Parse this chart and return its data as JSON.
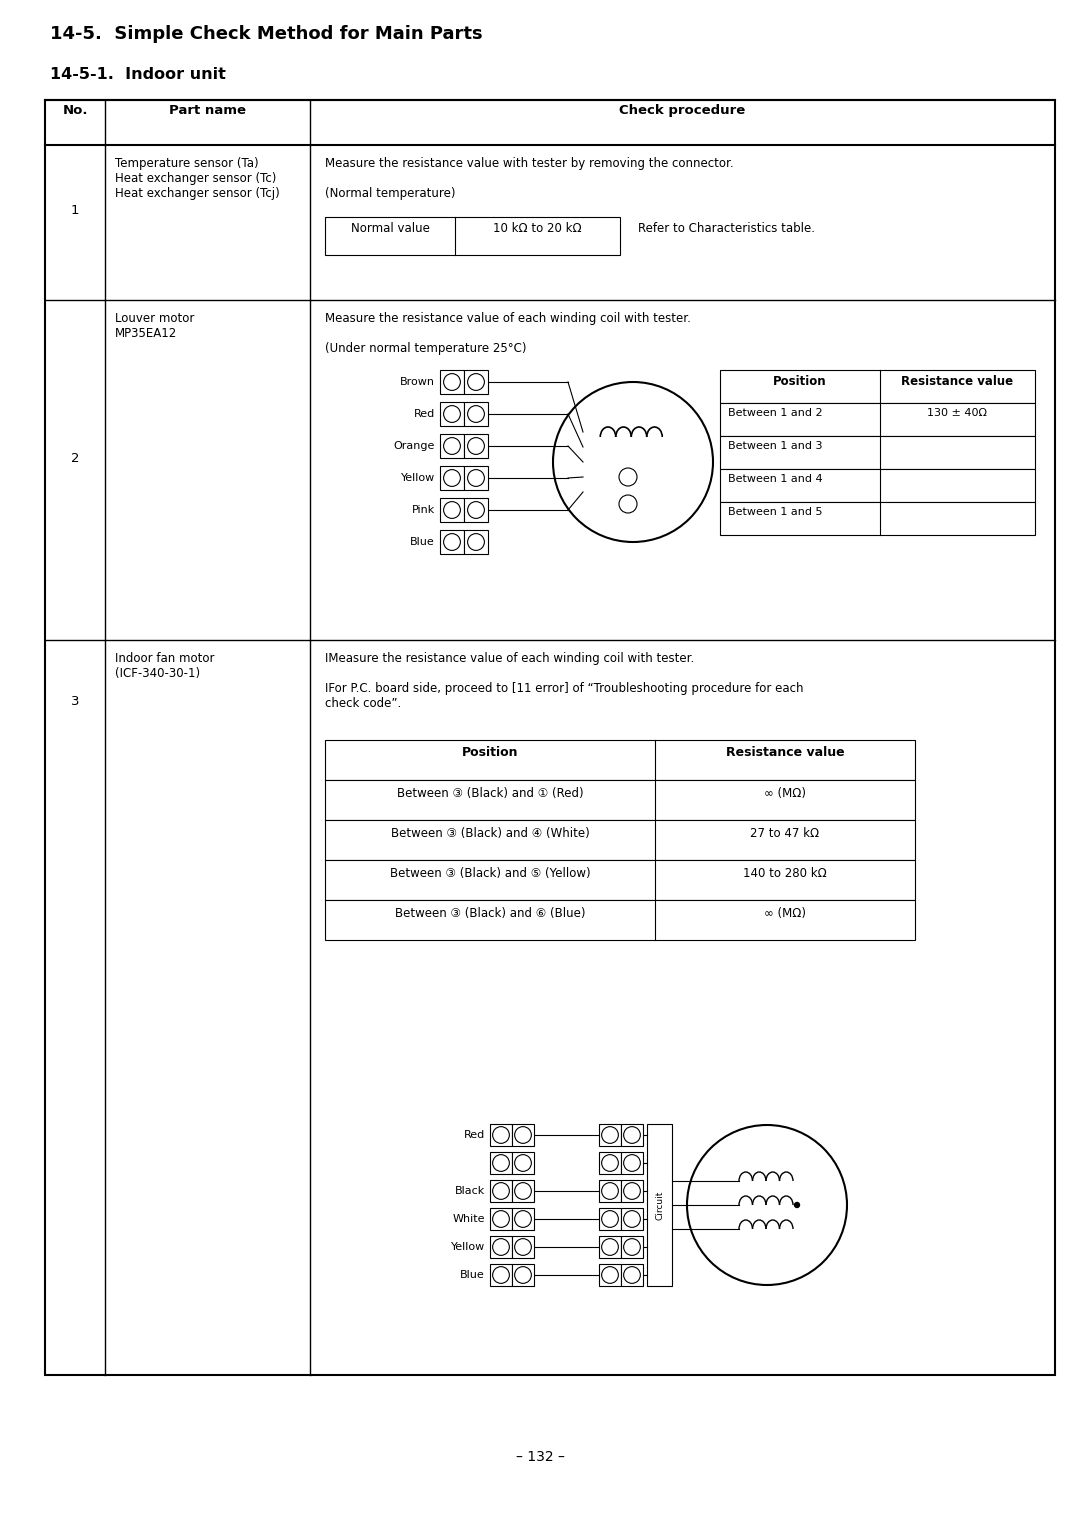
{
  "title1": "14-5.  Simple Check Method for Main Parts",
  "title2": "14-5-1.  Indoor unit",
  "page_number": "– 132 –",
  "bg_color": "#ffffff",
  "row1": {
    "no": "1",
    "part": "Temperature sensor (Ta)\nHeat exchanger sensor (Tc)\nHeat exchanger sensor (Tcj)",
    "check_line1": "Measure the resistance value with tester by removing the connector.",
    "check_line2": "(Normal temperature)",
    "normal_label": "Normal value",
    "normal_value": "10 kΩ to 20 kΩ",
    "refer_text": "Refer to Characteristics table."
  },
  "row2": {
    "no": "2",
    "part": "Louver motor\nMP35EA12",
    "check_line1": "Measure the resistance value of each winding coil with tester.",
    "check_line2": "(Under normal temperature 25°C)",
    "wire_labels": [
      "Brown",
      "Red",
      "Orange",
      "Yellow",
      "Pink",
      "Blue"
    ],
    "positions": [
      "Between 1 and 2",
      "Between 1 and 3",
      "Between 1 and 4",
      "Between 1 and 5"
    ],
    "resistance": "130 ± 40Ω"
  },
  "row3": {
    "no": "3",
    "part": "Indoor fan motor\n(ICF-340-30-1)",
    "check_line1": "IMeasure the resistance value of each winding coil with tester.",
    "check_line2": "IFor P.C. board side, proceed to [11 error] of “Troubleshooting procedure for each\ncheck code”.",
    "positions": [
      "Between ③ (Black) and ① (Red)",
      "Between ③ (Black) and ④ (White)",
      "Between ③ (Black) and ⑤ (Yellow)",
      "Between ③ (Black) and ⑥ (Blue)"
    ],
    "resistances": [
      "∞ (MΩ)",
      "27 to 47 kΩ",
      "140 to 280 kΩ",
      "∞ (MΩ)"
    ],
    "fan_wire_labels": [
      "Red",
      "Black",
      "White",
      "Yellow",
      "Blue"
    ]
  }
}
